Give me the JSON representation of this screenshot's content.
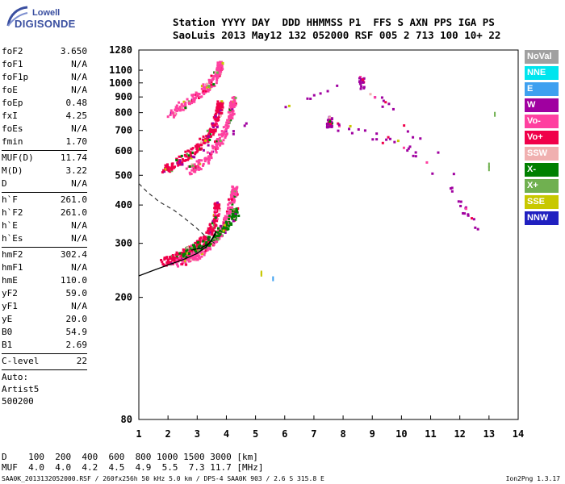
{
  "logo": {
    "line1": "Lowell",
    "line2": "DIGISONDE"
  },
  "header": {
    "line1": "Station YYYY DAY  DDD HHMMSS P1  FFS S AXN PPS IGA PS",
    "line2": "SaoLuis 2013 May12 132 052000 RSF 005 2 713 100 10+ 22"
  },
  "params_groups": [
    [
      [
        "foF2",
        "3.650"
      ],
      [
        "foF1",
        "N/A"
      ],
      [
        "foF1p",
        "N/A"
      ],
      [
        "foE",
        "N/A"
      ],
      [
        "foEp",
        "0.48"
      ],
      [
        "fxI",
        "4.25"
      ],
      [
        "foEs",
        "N/A"
      ],
      [
        "fmin",
        "1.70"
      ]
    ],
    [
      [
        "MUF(D)",
        "11.74"
      ],
      [
        "M(D)",
        "3.22"
      ],
      [
        "D",
        "N/A"
      ]
    ],
    [
      [
        "h`F",
        "261.0"
      ],
      [
        "h`F2",
        "261.0"
      ],
      [
        "h`E",
        "N/A"
      ],
      [
        "h`Es",
        "N/A"
      ]
    ],
    [
      [
        "hmF2",
        "302.4"
      ],
      [
        "hmF1",
        "N/A"
      ],
      [
        "hmE",
        "110.0"
      ],
      [
        "yF2",
        "59.0"
      ],
      [
        "yF1",
        "N/A"
      ],
      [
        "yE",
        "20.0"
      ],
      [
        "B0",
        "54.9"
      ],
      [
        "B1",
        "2.69"
      ]
    ],
    [
      [
        "C-level",
        "22"
      ]
    ]
  ],
  "auto_lines": [
    "Auto:",
    "Artist5",
    "500200"
  ],
  "legend": [
    {
      "label": "NoVal",
      "color": "#a0a0a0"
    },
    {
      "label": "NNE",
      "color": "#00e5ee"
    },
    {
      "label": "E",
      "color": "#3ea0f0"
    },
    {
      "label": "W",
      "color": "#a000a0"
    },
    {
      "label": "Vo-",
      "color": "#ff40a0"
    },
    {
      "label": "Vo+",
      "color": "#f0004a"
    },
    {
      "label": "SSW",
      "color": "#f0b0b0"
    },
    {
      "label": "X-",
      "color": "#008000"
    },
    {
      "label": "X+",
      "color": "#70b050"
    },
    {
      "label": "SSE",
      "color": "#c8c800"
    },
    {
      "label": "NNW",
      "color": "#2020c0"
    }
  ],
  "muf_table": {
    "line1": "D    100  200  400  600  800 1000 1500 3000 [km]",
    "line2": "MUF  4.0  4.0  4.2  4.5  4.9  5.5  7.3 11.7 [MHz]"
  },
  "footer": {
    "left": "SAA0K_2013132052000.RSF / 260fx256h 50 kHz 5.0 km / DPS-4 SAA0K 903 / 2.6 S 315.8 E",
    "right": "Ion2Png 1.3.17"
  },
  "chart_data": {
    "type": "scatter",
    "xlim": [
      1,
      14
    ],
    "ylim": [
      80,
      1280
    ],
    "x_ticks": [
      "1",
      "2",
      "3",
      "4",
      "5",
      "6",
      "7",
      "8",
      "9",
      "10",
      "11",
      "12",
      "13",
      "14"
    ],
    "y_ticks": [
      "80",
      "200",
      "300",
      "400",
      "500",
      "600",
      "700",
      "800",
      "900",
      "1000",
      "1100",
      "1280"
    ],
    "y_scale": "log",
    "grid": false,
    "legend_position": "right",
    "colors": {
      "vo_plus": "#f0004a",
      "vo_minus": "#ff40a0",
      "x_minus": "#008000",
      "x_plus": "#70b050",
      "w": "#a000a0",
      "sse": "#c8c800",
      "nnw": "#2020c0",
      "novl": "#a0a0a0"
    },
    "profile_curve": [
      [
        1.0,
        235
      ],
      [
        1.5,
        245
      ],
      [
        2.0,
        255
      ],
      [
        2.5,
        265
      ],
      [
        3.0,
        278
      ],
      [
        3.3,
        292
      ],
      [
        3.45,
        303
      ],
      [
        3.6,
        318
      ],
      [
        3.65,
        330
      ],
      [
        3.55,
        315
      ],
      [
        3.4,
        300
      ],
      [
        3.15,
        290
      ],
      [
        2.8,
        285
      ]
    ],
    "extrapolated_profile": [
      [
        1.0,
        470
      ],
      [
        1.3,
        440
      ],
      [
        1.7,
        410
      ],
      [
        2.2,
        385
      ],
      [
        2.6,
        360
      ],
      [
        3.0,
        335
      ],
      [
        3.3,
        315
      ],
      [
        3.6,
        300
      ]
    ],
    "trace_groups": [
      {
        "name": "F2-O",
        "color": "#f0004a",
        "points": [
          [
            1.8,
            262
          ],
          [
            2.0,
            266
          ],
          [
            2.2,
            270
          ],
          [
            2.4,
            275
          ],
          [
            2.6,
            281
          ],
          [
            2.8,
            289
          ],
          [
            3.0,
            298
          ],
          [
            3.2,
            310
          ],
          [
            3.4,
            328
          ],
          [
            3.5,
            345
          ],
          [
            3.6,
            370
          ],
          [
            3.65,
            400
          ]
        ]
      },
      {
        "name": "F2-X",
        "color": "#ff40a0",
        "points": [
          [
            2.3,
            262
          ],
          [
            2.5,
            266
          ],
          [
            2.7,
            271
          ],
          [
            2.9,
            276
          ],
          [
            3.1,
            283
          ],
          [
            3.3,
            292
          ],
          [
            3.5,
            305
          ],
          [
            3.7,
            320
          ],
          [
            3.9,
            345
          ],
          [
            4.0,
            370
          ],
          [
            4.1,
            400
          ],
          [
            4.2,
            430
          ],
          [
            4.25,
            450
          ]
        ]
      },
      {
        "name": "2F-O",
        "color": "#f0004a",
        "points": [
          [
            1.8,
            520
          ],
          [
            2.0,
            535
          ],
          [
            2.3,
            555
          ],
          [
            2.6,
            580
          ],
          [
            2.9,
            610
          ],
          [
            3.1,
            640
          ],
          [
            3.3,
            670
          ],
          [
            3.5,
            710
          ],
          [
            3.6,
            750
          ],
          [
            3.7,
            800
          ],
          [
            3.75,
            850
          ]
        ]
      },
      {
        "name": "2F-X",
        "color": "#ff40a0",
        "points": [
          [
            2.6,
            520
          ],
          [
            2.9,
            535
          ],
          [
            3.2,
            560
          ],
          [
            3.5,
            600
          ],
          [
            3.7,
            640
          ],
          [
            3.9,
            700
          ],
          [
            4.05,
            760
          ],
          [
            4.15,
            820
          ],
          [
            4.2,
            880
          ]
        ]
      },
      {
        "name": "3F",
        "color": "#ff40a0",
        "points": [
          [
            2.0,
            800
          ],
          [
            2.3,
            830
          ],
          [
            2.6,
            870
          ],
          [
            2.9,
            910
          ],
          [
            3.2,
            960
          ],
          [
            3.4,
            1000
          ],
          [
            3.6,
            1050
          ],
          [
            3.7,
            1100
          ],
          [
            3.75,
            1150
          ]
        ]
      },
      {
        "name": "spread",
        "color": "#008000",
        "points": [
          [
            2.4,
            280
          ],
          [
            2.8,
            290
          ],
          [
            3.2,
            300
          ],
          [
            3.6,
            320
          ],
          [
            3.9,
            340
          ],
          [
            4.1,
            360
          ],
          [
            4.3,
            380
          ]
        ]
      },
      {
        "name": "W",
        "color": "#a000a0",
        "points": [
          [
            1.9,
            510
          ],
          [
            8.6,
            1050
          ],
          [
            8.6,
            1000
          ],
          [
            12.5,
            345
          ],
          [
            10.2,
            620
          ],
          [
            7.5,
            740
          ],
          [
            7.5,
            755
          ]
        ]
      },
      {
        "name": "isolated",
        "color": "#c8c800",
        "points": [
          [
            5.2,
            238
          ],
          [
            5.2,
            240
          ]
        ]
      },
      {
        "name": "isolated2",
        "color": "#3ea0f0",
        "points": [
          [
            5.6,
            230
          ]
        ]
      },
      {
        "name": "isolated3",
        "color": "#70b050",
        "points": [
          [
            13.2,
            790
          ],
          [
            13.0,
            540
          ],
          [
            13.0,
            525
          ]
        ]
      }
    ]
  }
}
